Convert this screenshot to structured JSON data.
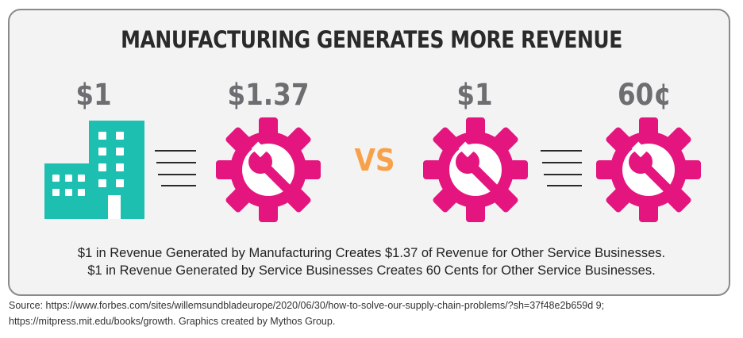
{
  "title": "MANUFACTURING GENERATES MORE REVENUE",
  "amounts": {
    "manufacturing_input": "$1",
    "manufacturing_output": "$1.37",
    "service_input": "$1",
    "service_output": "60¢"
  },
  "vs_label": "VS",
  "descriptions": [
    "$1 in Revenue Generated by Manufacturing Creates $1.37 of Revenue for Other Service Businesses.",
    "$1 in Revenue Generated by Service Businesses Creates 60 Cents for Other Service Businesses."
  ],
  "source_lines": [
    "Source: https://www.forbes.com/sites/willemsundbladeurope/2020/06/30/how-to-solve-our-supply-chain-problems/?sh=37f48e2b659d 9;",
    "https://mitpress.mit.edu/books/growth. Graphics created by Mythos Group."
  ],
  "icons": {
    "building": "building-icon",
    "gear": "gear-wrench-icon",
    "equals": "equals-lines-icon"
  },
  "colors": {
    "building": "#1dbfb1",
    "gear": "#e5157f",
    "vs": "#f7a24a",
    "amount": "#6d6e71",
    "title": "#2a2a2a",
    "card_background": "#f4f3f3"
  }
}
